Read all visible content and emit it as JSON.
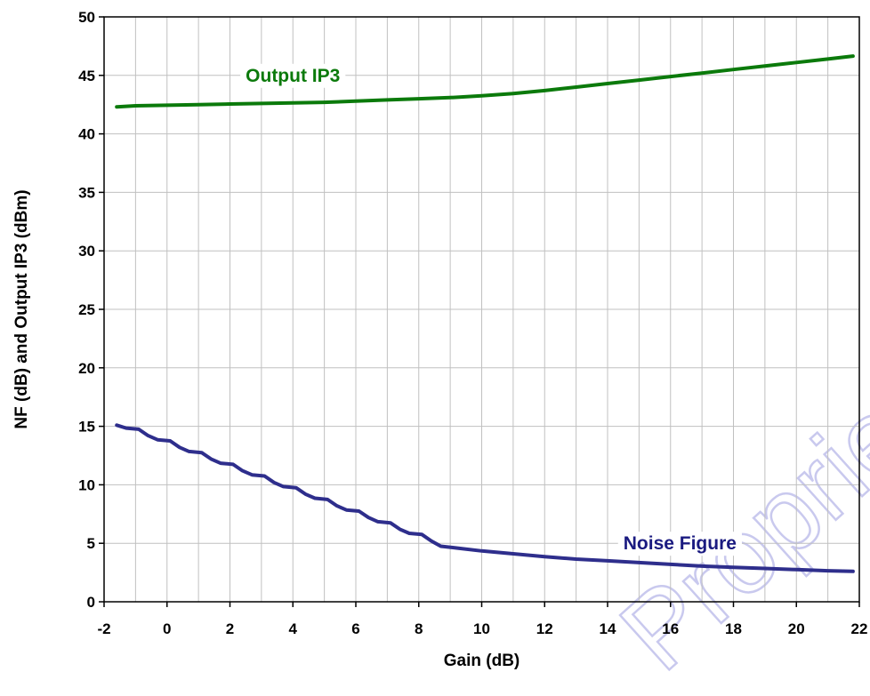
{
  "chart_data": {
    "type": "line",
    "xlabel": "Gain (dB)",
    "ylabel": "NF (dB) and Output IP3 (dBm)",
    "xlim": [
      -2,
      22
    ],
    "ylim": [
      0,
      50
    ],
    "xticks": [
      -2,
      0,
      2,
      4,
      6,
      8,
      10,
      12,
      14,
      16,
      18,
      20,
      22
    ],
    "yticks": [
      0,
      5,
      10,
      15,
      20,
      25,
      30,
      35,
      40,
      45,
      50
    ],
    "grid": true,
    "legend": "none",
    "series": [
      {
        "name": "Output IP3",
        "color": "#0b7a0b",
        "x": [
          -1.6,
          -1,
          0,
          1,
          2,
          3,
          4,
          5,
          6,
          7,
          8,
          9,
          10,
          11,
          12,
          13,
          14,
          15,
          16,
          17,
          18,
          19,
          20,
          21,
          21.8
        ],
        "y": [
          42.3,
          42.4,
          42.45,
          42.5,
          42.55,
          42.6,
          42.65,
          42.7,
          42.8,
          42.9,
          43.0,
          43.1,
          43.25,
          43.45,
          43.7,
          44.0,
          44.3,
          44.6,
          44.9,
          45.2,
          45.5,
          45.8,
          46.1,
          46.4,
          46.65
        ]
      },
      {
        "name": "Noise Figure",
        "color": "#2e2e8c",
        "x": [
          -1.6,
          -1.3,
          -0.9,
          -0.6,
          -0.3,
          0.1,
          0.4,
          0.7,
          1.1,
          1.4,
          1.7,
          2.1,
          2.4,
          2.7,
          3.1,
          3.4,
          3.7,
          4.1,
          4.4,
          4.7,
          5.1,
          5.4,
          5.7,
          6.1,
          6.4,
          6.7,
          7.1,
          7.4,
          7.7,
          8.1,
          8.4,
          8.7,
          9.2,
          10,
          11,
          12,
          13,
          14,
          15,
          16,
          17,
          18,
          19,
          20,
          21,
          21.8
        ],
        "y": [
          15.1,
          14.85,
          14.75,
          14.2,
          13.85,
          13.75,
          13.2,
          12.85,
          12.75,
          12.2,
          11.85,
          11.75,
          11.2,
          10.85,
          10.75,
          10.2,
          9.85,
          9.75,
          9.2,
          8.85,
          8.75,
          8.2,
          7.85,
          7.75,
          7.2,
          6.85,
          6.75,
          6.2,
          5.85,
          5.75,
          5.2,
          4.75,
          4.6,
          4.35,
          4.1,
          3.85,
          3.65,
          3.5,
          3.35,
          3.2,
          3.05,
          2.95,
          2.85,
          2.75,
          2.65,
          2.6
        ]
      }
    ],
    "annotations": [
      {
        "text": "Output IP3",
        "x": 4.0,
        "y": 45.0,
        "color": "#0b7a0b"
      },
      {
        "text": "Noise Figure",
        "x": 16.3,
        "y": 5.0,
        "color": "#1a1a80"
      }
    ]
  },
  "watermark": {
    "text": "Proprietary"
  }
}
